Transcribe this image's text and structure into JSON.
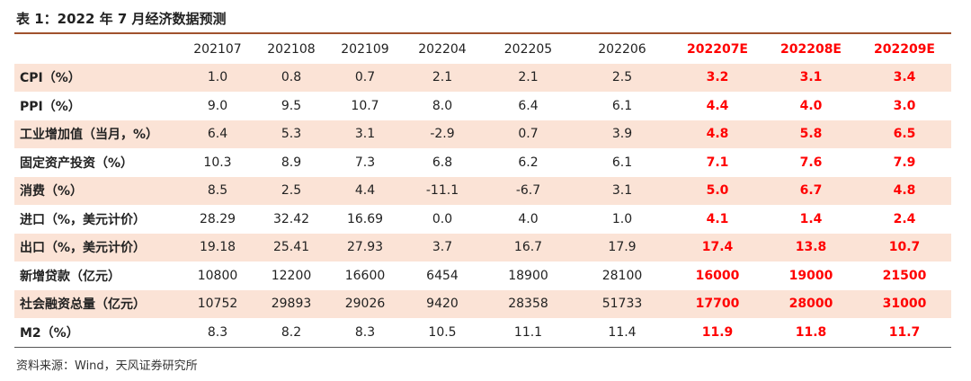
{
  "title": "表 1：2022 年 7 月经济数据预测",
  "table": {
    "headers": [
      "",
      "202107",
      "202108",
      "202109",
      "202204",
      "202205",
      "202206",
      "202207E",
      "202208E",
      "202209E"
    ],
    "forecast_color": "#ff0000",
    "shade_color": "#fbe3d6",
    "rows": [
      {
        "label": "CPI（%）",
        "values": [
          "1.0",
          "0.8",
          "0.7",
          "2.1",
          "2.1",
          "2.5",
          "3.2",
          "3.1",
          "3.4"
        ]
      },
      {
        "label": "PPI（%）",
        "values": [
          "9.0",
          "9.5",
          "10.7",
          "8.0",
          "6.4",
          "6.1",
          "4.4",
          "4.0",
          "3.0"
        ]
      },
      {
        "label": "工业增加值（当月，%）",
        "values": [
          "6.4",
          "5.3",
          "3.1",
          "-2.9",
          "0.7",
          "3.9",
          "4.8",
          "5.8",
          "6.5"
        ]
      },
      {
        "label": "固定资产投资（%）",
        "values": [
          "10.3",
          "8.9",
          "7.3",
          "6.8",
          "6.2",
          "6.1",
          "7.1",
          "7.6",
          "7.9"
        ]
      },
      {
        "label": "消费（%）",
        "values": [
          "8.5",
          "2.5",
          "4.4",
          "-11.1",
          "-6.7",
          "3.1",
          "5.0",
          "6.7",
          "4.8"
        ]
      },
      {
        "label": "进口（%，美元计价）",
        "values": [
          "28.29",
          "32.42",
          "16.69",
          "0.0",
          "4.0",
          "1.0",
          "4.1",
          "1.4",
          "2.4"
        ]
      },
      {
        "label": "出口（%，美元计价）",
        "values": [
          "19.18",
          "25.41",
          "27.93",
          "3.7",
          "16.7",
          "17.9",
          "17.4",
          "13.8",
          "10.7"
        ]
      },
      {
        "label": "新增贷款（亿元）",
        "values": [
          "10800",
          "12200",
          "16600",
          "6454",
          "18900",
          "28100",
          "16000",
          "19000",
          "21500"
        ]
      },
      {
        "label": "社会融资总量（亿元）",
        "values": [
          "10752",
          "29893",
          "29026",
          "9420",
          "28358",
          "51733",
          "17700",
          "28000",
          "31000"
        ]
      },
      {
        "label": "M2（%）",
        "values": [
          "8.3",
          "8.2",
          "8.3",
          "10.5",
          "11.1",
          "11.4",
          "11.9",
          "11.8",
          "11.7"
        ]
      }
    ]
  },
  "source": "资料来源：Wind，天风证券研究所"
}
